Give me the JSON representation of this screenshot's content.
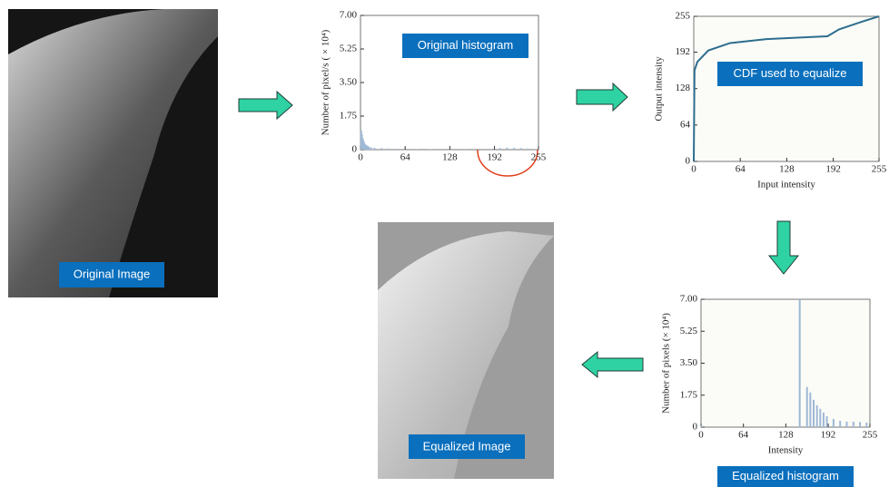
{
  "images": {
    "original": {
      "label": "Original Image"
    },
    "equalized": {
      "label": "Equalized Image"
    }
  },
  "original_histogram": {
    "type": "histogram",
    "label": "Original histogram",
    "ylabel": "Number of pixel/s ( × 10⁴)",
    "xlim": [
      0,
      255
    ],
    "ylim": [
      0,
      7
    ],
    "xticks": [
      0,
      64,
      128,
      192,
      255
    ],
    "yticks": [
      0,
      1.75,
      {
        "value": 3.5,
        "label": "3.50"
      },
      5.25,
      {
        "value": 7,
        "label": "7.00"
      }
    ],
    "color": "#9fb8d6",
    "x": [
      1,
      2,
      3,
      4,
      5,
      6,
      8,
      10,
      12,
      15,
      20,
      30,
      40,
      50,
      60,
      80,
      100,
      150,
      190,
      200,
      210,
      220,
      230,
      240,
      250
    ],
    "counts": [
      1.0,
      0.8,
      0.6,
      0.5,
      0.4,
      0.3,
      0.25,
      0.2,
      0.15,
      0.12,
      0.1,
      0.08,
      0.06,
      0.05,
      0.04,
      0.03,
      0.02,
      0.01,
      0.05,
      0.08,
      0.1,
      0.09,
      0.08,
      0.06,
      0.04
    ]
  },
  "cdf": {
    "type": "line",
    "label": "CDF used to equalize",
    "xlabel": "Input intensity",
    "ylabel": "Output intensity",
    "xlim": [
      0,
      255
    ],
    "ylim": [
      0,
      255
    ],
    "xticks": [
      0,
      64,
      128,
      192,
      255
    ],
    "yticks": [
      0,
      64,
      128,
      192,
      255
    ],
    "color": "#2d6d8f",
    "x": [
      0,
      1,
      5,
      20,
      50,
      100,
      150,
      184,
      200,
      230,
      255
    ],
    "y": [
      0,
      160,
      175,
      195,
      208,
      215,
      218,
      220,
      232,
      245,
      255
    ]
  },
  "equalized_histogram": {
    "type": "histogram",
    "label": "Equalized histogram",
    "xlabel": "Intensity",
    "ylabel": "Number of pixels (× 10⁴)",
    "xlim": [
      0,
      255
    ],
    "ylim": [
      0,
      7
    ],
    "xticks": [
      0,
      64,
      128,
      192,
      255
    ],
    "yticks": [
      0,
      1.75,
      {
        "value": 3.5,
        "label": "3.50"
      },
      5.25,
      {
        "value": 7,
        "label": "7.00"
      }
    ],
    "color": "#9fb8d6",
    "x": [
      1,
      149,
      160,
      165,
      170,
      175,
      180,
      185,
      190,
      200,
      210,
      220,
      230,
      240,
      250
    ],
    "counts": [
      0.08,
      7.0,
      2.2,
      1.9,
      1.5,
      1.2,
      1.0,
      0.8,
      0.6,
      0.45,
      0.35,
      0.3,
      0.3,
      0.28,
      0.25
    ]
  }
}
